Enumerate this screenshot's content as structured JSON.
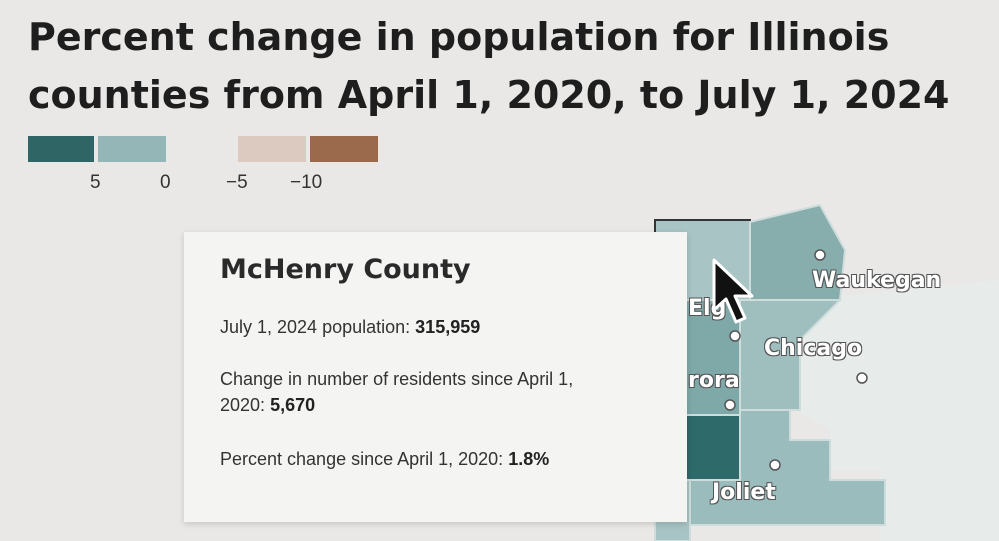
{
  "title": "Percent change in population for Illinois counties from April 1, 2020, to July 1, 2024",
  "legend": {
    "ticks": [
      "5",
      "0",
      "−5",
      "−10"
    ],
    "colors": [
      "#2f6665",
      "#94b6b6",
      "#dccac1",
      "#9b6a4d"
    ]
  },
  "map": {
    "cities": [
      "Waukegan",
      "Chicago",
      "Elg",
      "rora",
      "Joliet"
    ],
    "county_colors": {
      "light": "#9fbfbf",
      "mid": "#7da7a7",
      "dark": "#2e6a69",
      "lake": "#e7eceb"
    }
  },
  "tooltip": {
    "county": "McHenry County",
    "population_label": "July 1, 2024 population:",
    "population_value": "315,959",
    "change_label": "Change in number of residents since April 1, 2020:",
    "change_value": "5,670",
    "percent_label": "Percent change since April 1, 2020:",
    "percent_value": "1.8%"
  },
  "icons": {
    "cursor": "mouse-pointer-icon"
  }
}
